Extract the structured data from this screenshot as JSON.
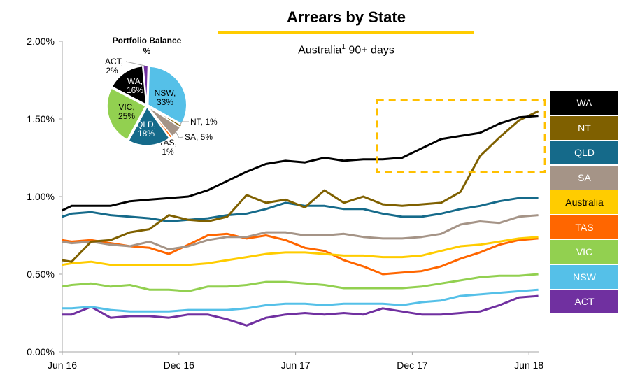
{
  "chart_data": {
    "type": "line",
    "title": "Arrears by State",
    "subtitle": "Australia",
    "subtitle_superscript": "1",
    "subtitle_suffix": " 90+ days",
    "xlabel": "",
    "ylabel": "",
    "ylim": [
      0,
      2.0
    ],
    "y_ticks": [
      "0.00%",
      "0.50%",
      "1.00%",
      "1.50%",
      "2.00%"
    ],
    "y_tick_values": [
      0,
      0.5,
      1.0,
      1.5,
      2.0
    ],
    "x_ticks": [
      "Jun 16",
      "Dec 16",
      "Jun 17",
      "Dec 17",
      "Jun 18"
    ],
    "x_tick_months": [
      0,
      6,
      12,
      18,
      24
    ],
    "x_months": [
      0,
      0.5,
      1.5,
      2.5,
      3.5,
      4.5,
      5.5,
      6.5,
      7.5,
      8.5,
      9.5,
      10.5,
      11.5,
      12.5,
      13.5,
      14.5,
      15.5,
      16.5,
      17.5,
      18.5,
      19.5,
      20.5,
      21.5,
      22.5,
      23.5,
      24.5
    ],
    "grid": false,
    "legend_position": "right",
    "series": [
      {
        "name": "WA",
        "color": "#000000",
        "text_color": "#ffffff",
        "values": [
          0.91,
          0.94,
          0.94,
          0.94,
          0.97,
          0.98,
          0.99,
          1.0,
          1.04,
          1.1,
          1.16,
          1.21,
          1.23,
          1.22,
          1.25,
          1.23,
          1.24,
          1.24,
          1.25,
          1.31,
          1.37,
          1.39,
          1.41,
          1.47,
          1.51,
          1.52
        ]
      },
      {
        "name": "NT",
        "color": "#7f6000",
        "text_color": "#ffffff",
        "values": [
          0.59,
          0.58,
          0.71,
          0.72,
          0.77,
          0.79,
          0.88,
          0.85,
          0.84,
          0.87,
          1.01,
          0.96,
          0.98,
          0.93,
          1.04,
          0.96,
          1.0,
          0.95,
          0.94,
          0.95,
          0.96,
          1.03,
          1.26,
          1.38,
          1.49,
          1.55
        ]
      },
      {
        "name": "QLD",
        "color": "#156a8a",
        "text_color": "#ffffff",
        "values": [
          0.87,
          0.89,
          0.9,
          0.88,
          0.87,
          0.86,
          0.84,
          0.85,
          0.86,
          0.88,
          0.89,
          0.92,
          0.96,
          0.94,
          0.94,
          0.92,
          0.92,
          0.89,
          0.87,
          0.87,
          0.89,
          0.92,
          0.94,
          0.97,
          0.99,
          0.99
        ]
      },
      {
        "name": "SA",
        "color": "#a59487",
        "text_color": "#ffffff",
        "values": [
          0.71,
          0.7,
          0.71,
          0.69,
          0.68,
          0.71,
          0.66,
          0.68,
          0.72,
          0.74,
          0.74,
          0.77,
          0.77,
          0.75,
          0.75,
          0.76,
          0.74,
          0.73,
          0.73,
          0.74,
          0.76,
          0.82,
          0.84,
          0.83,
          0.87,
          0.88
        ]
      },
      {
        "name": "Australia",
        "color": "#ffcc00",
        "text_color": "#000000",
        "values": [
          0.56,
          0.57,
          0.58,
          0.56,
          0.56,
          0.56,
          0.56,
          0.56,
          0.57,
          0.59,
          0.61,
          0.63,
          0.64,
          0.64,
          0.63,
          0.62,
          0.62,
          0.61,
          0.61,
          0.62,
          0.65,
          0.68,
          0.69,
          0.71,
          0.73,
          0.74
        ]
      },
      {
        "name": "TAS",
        "color": "#ff6600",
        "text_color": "#ffffff",
        "values": [
          0.72,
          0.71,
          0.72,
          0.7,
          0.68,
          0.67,
          0.63,
          0.69,
          0.75,
          0.76,
          0.73,
          0.75,
          0.72,
          0.67,
          0.65,
          0.59,
          0.55,
          0.5,
          0.51,
          0.52,
          0.55,
          0.6,
          0.64,
          0.69,
          0.72,
          0.73
        ]
      },
      {
        "name": "VIC",
        "color": "#92d050",
        "text_color": "#ffffff",
        "values": [
          0.42,
          0.43,
          0.44,
          0.42,
          0.43,
          0.4,
          0.4,
          0.39,
          0.42,
          0.42,
          0.43,
          0.45,
          0.45,
          0.44,
          0.43,
          0.41,
          0.41,
          0.41,
          0.41,
          0.42,
          0.44,
          0.46,
          0.48,
          0.49,
          0.49,
          0.5
        ]
      },
      {
        "name": "NSW",
        "color": "#55c0e8",
        "text_color": "#ffffff",
        "values": [
          0.28,
          0.28,
          0.29,
          0.27,
          0.26,
          0.26,
          0.26,
          0.27,
          0.27,
          0.27,
          0.28,
          0.3,
          0.31,
          0.31,
          0.3,
          0.31,
          0.31,
          0.31,
          0.3,
          0.32,
          0.33,
          0.36,
          0.37,
          0.38,
          0.39,
          0.4
        ]
      },
      {
        "name": "ACT",
        "color": "#7030a0",
        "text_color": "#ffffff",
        "values": [
          0.24,
          0.24,
          0.29,
          0.22,
          0.23,
          0.23,
          0.22,
          0.24,
          0.24,
          0.21,
          0.17,
          0.22,
          0.24,
          0.25,
          0.24,
          0.25,
          0.24,
          0.28,
          0.26,
          0.24,
          0.24,
          0.25,
          0.26,
          0.3,
          0.35,
          0.36
        ]
      }
    ],
    "highlight_box": {
      "x_months_range": [
        16.5,
        24.5
      ],
      "y_range": [
        1.16,
        1.62
      ],
      "color": "#ffc000",
      "style": "dashed"
    },
    "inset_pie": {
      "title": "Portfolio Balance %",
      "slices": [
        {
          "name": "NSW",
          "value": 33,
          "label": "NSW, 33%",
          "color": "#55c0e8"
        },
        {
          "name": "NT",
          "value": 1,
          "label": "NT, 1%",
          "color": "#7f6000"
        },
        {
          "name": "SA",
          "value": 5,
          "label": "SA, 5%",
          "color": "#a59487"
        },
        {
          "name": "TAS",
          "value": 1,
          "label": "TAS, 1%",
          "color": "#ff6600"
        },
        {
          "name": "QLD",
          "value": 18,
          "label": "QLD, 18%",
          "color": "#156a8a"
        },
        {
          "name": "VIC",
          "value": 25,
          "label": "VIC, 25%",
          "color": "#92d050"
        },
        {
          "name": "WA",
          "value": 16,
          "label": "WA, 16%",
          "color": "#000000"
        },
        {
          "name": "ACT",
          "value": 2,
          "label": "ACT, 2%",
          "color": "#7030a0"
        }
      ]
    }
  },
  "colors": {
    "accent": "#ffcc00",
    "axis": "#a6a6a6"
  }
}
